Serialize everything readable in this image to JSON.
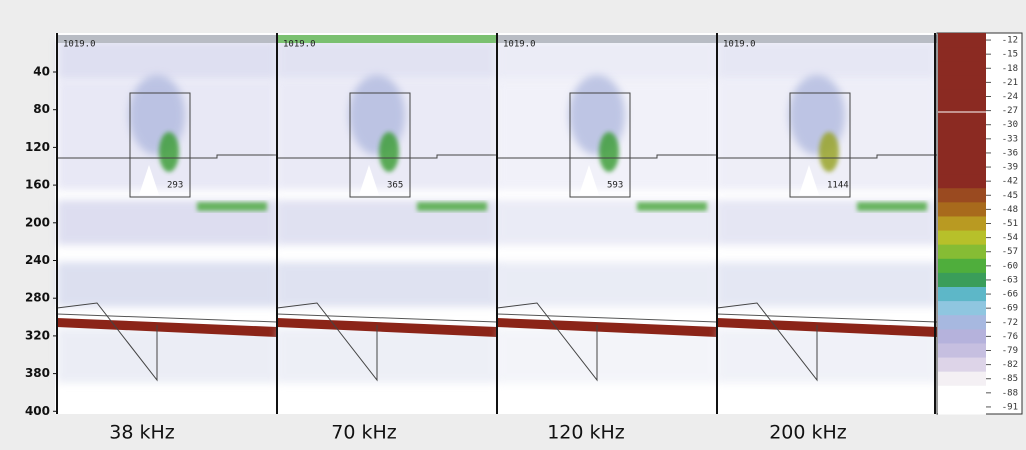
{
  "depth_axis": {
    "labels": [
      "40",
      "80",
      "120",
      "160",
      "200",
      "240",
      "280",
      "320",
      "380",
      "400"
    ]
  },
  "panels": [
    {
      "header": "1019.0",
      "box_value": "293",
      "frequency": "38 kHz"
    },
    {
      "header": "1019.0",
      "box_value": "365",
      "frequency": "70 kHz"
    },
    {
      "header": "1019.0",
      "box_value": "593",
      "frequency": "120 kHz"
    },
    {
      "header": "1019.0",
      "box_value": "1144",
      "frequency": "200 kHz"
    }
  ],
  "color_scale": {
    "labels": [
      "-12",
      "-15",
      "-18",
      "-21",
      "-24",
      "-27",
      "-30",
      "-33",
      "-36",
      "-39",
      "-42",
      "-45",
      "-48",
      "-51",
      "-54",
      "-57",
      "-60",
      "-63",
      "-66",
      "-69",
      "-72",
      "-76",
      "-79",
      "-82",
      "-85",
      "-88",
      "-91"
    ]
  }
}
